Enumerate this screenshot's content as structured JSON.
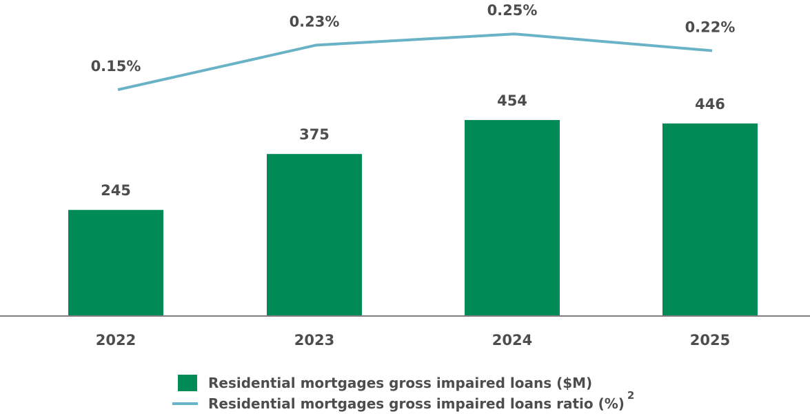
{
  "chart_data": {
    "type": "bar",
    "categories": [
      "2022",
      "2023",
      "2024",
      "2025"
    ],
    "series": [
      {
        "name": "Residential mortgages gross impaired loans ($M)",
        "type": "bar",
        "values": [
          245,
          375,
          454,
          446
        ],
        "labels": [
          "245",
          "375",
          "454",
          "446"
        ],
        "color": "#008a55"
      },
      {
        "name": "Residential mortgages gross impaired loans ratio (%)",
        "type": "line",
        "values": [
          0.15,
          0.23,
          0.25,
          0.22
        ],
        "labels": [
          "0.15%",
          "0.23%",
          "0.25%",
          "0.22%"
        ],
        "color": "#6ab2c5"
      }
    ],
    "legend": {
      "position": "bottom",
      "footnote": "2"
    },
    "axis_color": "#7f7f7f",
    "text_color": "#4d4d4d",
    "grid": false
  }
}
